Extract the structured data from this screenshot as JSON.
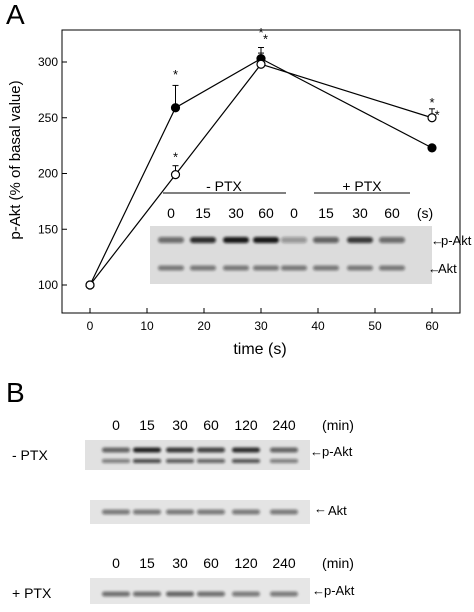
{
  "panel_a": {
    "label": "A",
    "chart_data": {
      "type": "line",
      "xlabel": "time (s)",
      "ylabel": "p-Akt (% of basal value)",
      "xlim": [
        0,
        60
      ],
      "ylim": [
        100,
        320
      ],
      "x_ticks": [
        0,
        10,
        20,
        30,
        40,
        50,
        60
      ],
      "y_ticks": [
        100,
        150,
        200,
        250,
        300
      ],
      "grid": false,
      "legend": "none",
      "series": [
        {
          "marker": "filled-circle",
          "x": [
            0,
            15,
            30,
            60
          ],
          "y": [
            100,
            259,
            303,
            223
          ],
          "err": [
            0,
            20,
            10,
            0
          ]
        },
        {
          "marker": "open-circle",
          "x": [
            0,
            15,
            30,
            60
          ],
          "y": [
            100,
            199,
            298,
            250
          ],
          "err": [
            0,
            8,
            10,
            8
          ]
        }
      ],
      "significance": [
        {
          "x": 15,
          "y": 290,
          "text": "*"
        },
        {
          "x": 15,
          "y": 216,
          "text": "*"
        },
        {
          "x": 30,
          "y": 328,
          "text": "*"
        },
        {
          "x": 30.8,
          "y": 322,
          "text": "*"
        },
        {
          "x": 60,
          "y": 265,
          "text": "*"
        },
        {
          "x": 60.9,
          "y": 254,
          "text": "*"
        }
      ]
    },
    "blot": {
      "minus_ptx": "- PTX",
      "plus_ptx": "+ PTX",
      "lanes": [
        "0",
        "15",
        "30",
        "60",
        "0",
        "15",
        "30",
        "60"
      ],
      "unit": "(s)",
      "row1": "p-Akt",
      "row2": "Akt",
      "arrow": "←"
    }
  },
  "panel_b": {
    "label": "B",
    "minus_ptx": "- PTX",
    "plus_ptx": "+ PTX",
    "lanes": [
      "0",
      "15",
      "30",
      "60",
      "120",
      "240"
    ],
    "unit": "(min)",
    "row1": "p-Akt",
    "row2": "Akt",
    "row3": "p-Akt",
    "arrow": "←"
  }
}
